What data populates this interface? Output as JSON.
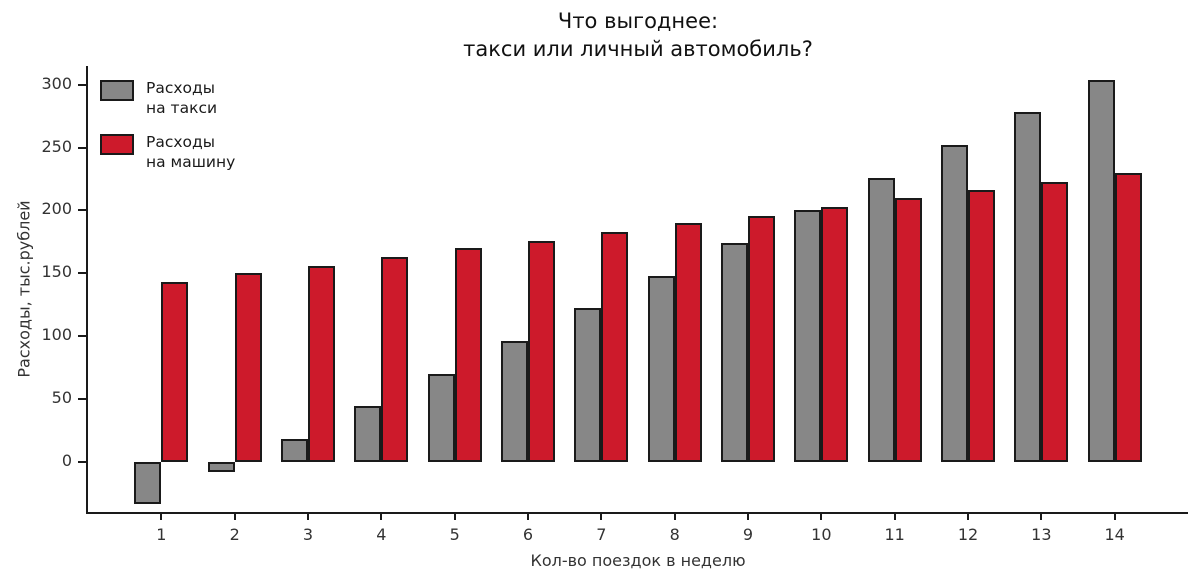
{
  "title": {
    "line1": "Что выгоднее:",
    "line2": "такси или личный автомобиль?"
  },
  "chart_data": {
    "type": "bar",
    "title": "Что выгоднее: такси или личный автомобиль?",
    "xlabel": "Кол-во поездок в неделю",
    "ylabel": "Расходы, тыс.рублей",
    "categories": [
      "1",
      "2",
      "3",
      "4",
      "5",
      "6",
      "7",
      "8",
      "9",
      "10",
      "11",
      "12",
      "13",
      "14"
    ],
    "series": [
      {
        "name": "Расходы на такси",
        "label_lines": [
          "Расходы",
          "на такси"
        ],
        "color": "#878787",
        "values": [
          -34,
          -8,
          18,
          44,
          70,
          96,
          122,
          148,
          174,
          200,
          226,
          252,
          278,
          304
        ]
      },
      {
        "name": "Расходы на машину",
        "label_lines": [
          "Расходы",
          "на машину"
        ],
        "color": "#cd1a2b",
        "values": [
          143,
          150,
          156,
          163,
          170,
          176,
          183,
          190,
          196,
          203,
          210,
          216,
          223,
          230
        ]
      }
    ],
    "ylim": [
      -40,
      315
    ],
    "yticks": [
      0,
      50,
      100,
      150,
      200,
      250,
      300
    ],
    "bar_edge_color": "#1a1a1a",
    "grid": false,
    "legend_position": "upper left"
  }
}
